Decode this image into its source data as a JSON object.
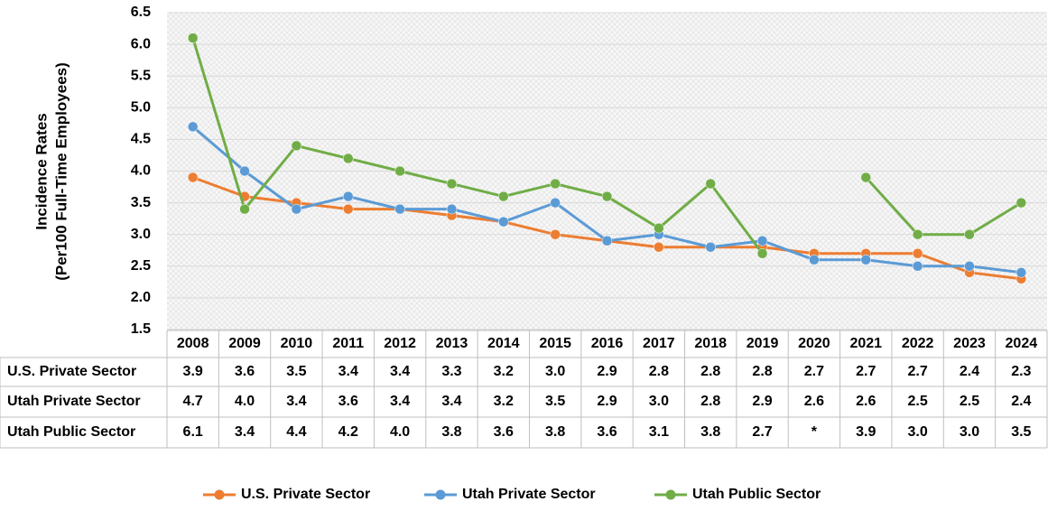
{
  "chart_data": {
    "type": "line",
    "ylabel": [
      "Incidence Rates",
      "(Per100 Full-Time Employees)"
    ],
    "categories": [
      "2008",
      "2009",
      "2010",
      "2011",
      "2012",
      "2013",
      "2014",
      "2015",
      "2016",
      "2017",
      "2018",
      "2019",
      "2020",
      "2021",
      "2022",
      "2023",
      "2024"
    ],
    "series": [
      {
        "name": "U.S. Private Sector",
        "color": "#ed7d31",
        "values": [
          3.9,
          3.6,
          3.5,
          3.4,
          3.4,
          3.3,
          3.2,
          3.0,
          2.9,
          2.8,
          2.8,
          2.8,
          2.7,
          2.7,
          2.7,
          2.4,
          2.3
        ],
        "value_labels": [
          "3.9",
          "3.6",
          "3.5",
          "3.4",
          "3.4",
          "3.3",
          "3.2",
          "3.0",
          "2.9",
          "2.8",
          "2.8",
          "2.8",
          "2.7",
          "2.7",
          "2.7",
          "2.4",
          "2.3"
        ]
      },
      {
        "name": "Utah Private Sector",
        "color": "#5b9bd5",
        "values": [
          4.7,
          4.0,
          3.4,
          3.6,
          3.4,
          3.4,
          3.2,
          3.5,
          2.9,
          3.0,
          2.8,
          2.9,
          2.6,
          2.6,
          2.5,
          2.5,
          2.4
        ],
        "value_labels": [
          "4.7",
          "4.0",
          "3.4",
          "3.6",
          "3.4",
          "3.4",
          "3.2",
          "3.5",
          "2.9",
          "3.0",
          "2.8",
          "2.9",
          "2.6",
          "2.6",
          "2.5",
          "2.5",
          "2.4"
        ]
      },
      {
        "name": "Utah Public Sector",
        "color": "#70ad47",
        "values": [
          6.1,
          3.4,
          4.4,
          4.2,
          4.0,
          3.8,
          3.6,
          3.8,
          3.6,
          3.1,
          3.8,
          2.7,
          null,
          3.9,
          3.0,
          3.0,
          3.5
        ],
        "value_labels": [
          "6.1",
          "3.4",
          "4.4",
          "4.2",
          "4.0",
          "3.8",
          "3.6",
          "3.8",
          "3.6",
          "3.1",
          "3.8",
          "2.7",
          "*",
          "3.9",
          "3.0",
          "3.0",
          "3.5"
        ]
      }
    ],
    "ylim": [
      1.5,
      6.5
    ],
    "yticks": [
      1.5,
      {
        "value": 2,
        "label": "2.0"
      },
      2.5,
      {
        "value": 3,
        "label": "3.0"
      },
      3.5,
      {
        "value": 4,
        "label": "4.0"
      },
      4.5,
      {
        "value": 5,
        "label": "5.0"
      },
      5.5,
      {
        "value": 6,
        "label": "6.0"
      },
      6.5
    ],
    "grid": true,
    "legend": "bottom"
  }
}
